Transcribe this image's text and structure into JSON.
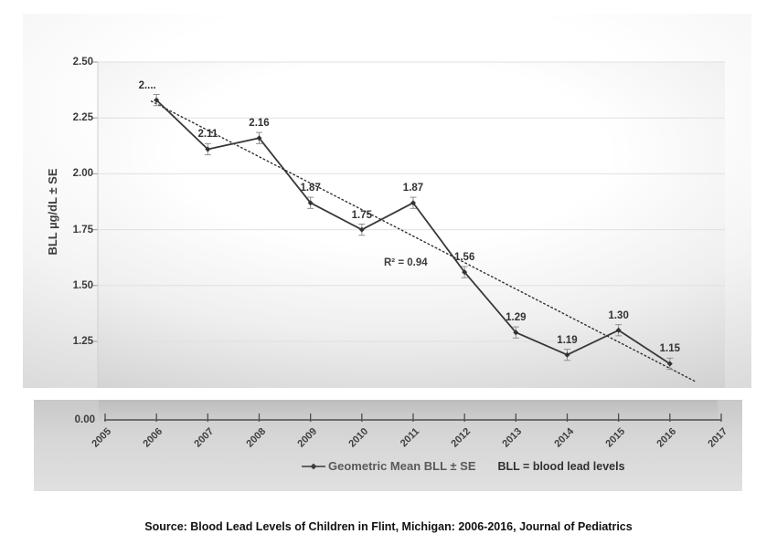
{
  "page": {
    "source_caption": "Source: Blood Lead Levels of Children in Flint, Michigan: 2006-2016, Journal of Pediatrics"
  },
  "chart_data": {
    "type": "line",
    "series_name": "Geometric Mean BLL ± SE",
    "x": [
      2006,
      2007,
      2008,
      2009,
      2010,
      2011,
      2012,
      2013,
      2014,
      2015,
      2016
    ],
    "values": [
      2.33,
      2.11,
      2.16,
      1.87,
      1.75,
      1.87,
      1.56,
      1.29,
      1.19,
      1.3,
      1.15
    ],
    "point_labels": [
      "2....",
      "2.11",
      "2.16",
      "1.87",
      "1.75",
      "1.87",
      "1.56",
      "1.29",
      "1.19",
      "1.30",
      "1.15"
    ],
    "se": 0.025,
    "ylabel": "BLL  µg/dL ± SE",
    "y_axis": {
      "tick_values": [
        2.5,
        2.25,
        2.0,
        1.75,
        1.5,
        1.25
      ],
      "tick_labels": [
        "2.50",
        "2.25",
        "2.00",
        "1.75",
        "1.50",
        "1.25"
      ],
      "zero_label": "0.00",
      "axis_break": true
    },
    "x_axis": {
      "tick_values": [
        2005,
        2006,
        2007,
        2008,
        2009,
        2010,
        2011,
        2012,
        2013,
        2014,
        2015,
        2016,
        2017
      ],
      "tick_labels": [
        "2005",
        "2006",
        "2007",
        "2008",
        "2009",
        "2010",
        "2011",
        "2012",
        "2013",
        "2014",
        "2015",
        "2016",
        "2017"
      ]
    },
    "trendline": {
      "style": "dotted",
      "x": [
        2005.9,
        2016.5
      ],
      "y": [
        2.325,
        1.07
      ],
      "label": "R² = 0.94"
    },
    "legend": {
      "series_label": "Geometric Mean BLL ± SE",
      "note": "BLL = blood lead levels"
    },
    "grid": "horizontal-only",
    "legend_position": "bottom"
  },
  "colors": {
    "line": "#383838",
    "marker": "#333333",
    "trendline": "#2f2f2f",
    "error_bar": "#8f8f8f",
    "grid": "#e0e0e0",
    "axis": "#4d4d4d",
    "plot_border": "#cfcfcf"
  }
}
